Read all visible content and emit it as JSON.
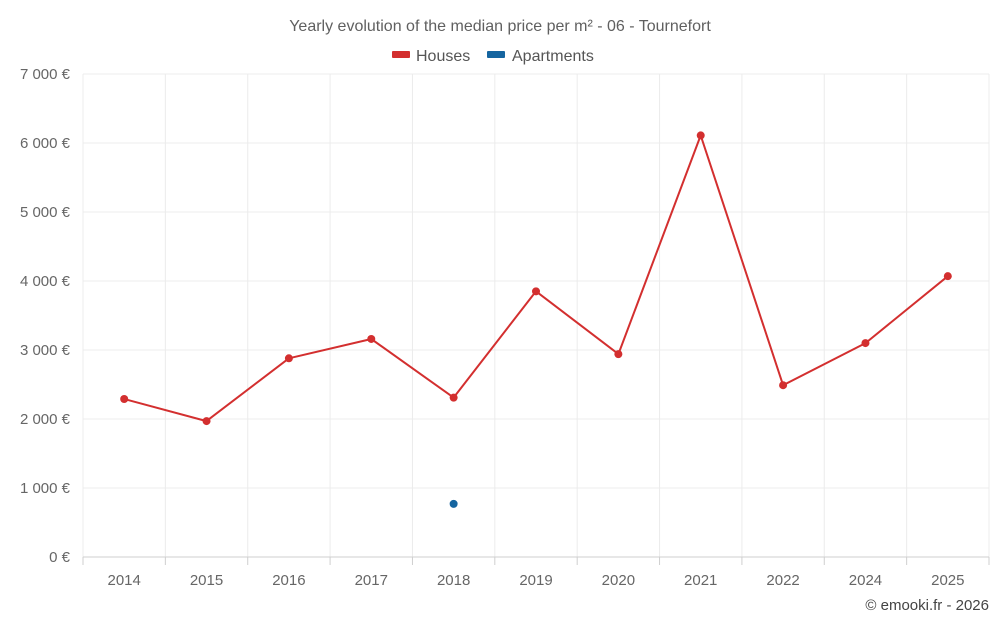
{
  "chart_data": {
    "type": "line",
    "title": "Yearly evolution of the median price per m² - 06 - Tournefort",
    "categories": [
      "2014",
      "2015",
      "2016",
      "2017",
      "2018",
      "2019",
      "2020",
      "2021",
      "2022",
      "2024",
      "2025"
    ],
    "series": [
      {
        "name": "Houses",
        "color": "#d32f2f",
        "values": [
          2290,
          1970,
          2880,
          3160,
          2310,
          3850,
          2940,
          6110,
          2490,
          3100,
          4070
        ]
      },
      {
        "name": "Apartments",
        "color": "#1565a0",
        "values": [
          null,
          null,
          null,
          null,
          770,
          null,
          null,
          null,
          null,
          null,
          null
        ]
      }
    ],
    "ylim": [
      0,
      7000
    ],
    "yticks": [
      0,
      1000,
      2000,
      3000,
      4000,
      5000,
      6000,
      7000
    ],
    "ytick_labels": [
      "0 €",
      "1 000 €",
      "2 000 €",
      "3 000 €",
      "4 000 €",
      "5 000 €",
      "6 000 €",
      "7 000 €"
    ],
    "grid": true,
    "legend_position": "top-center",
    "credit": "© emooki.fr - 2026"
  }
}
